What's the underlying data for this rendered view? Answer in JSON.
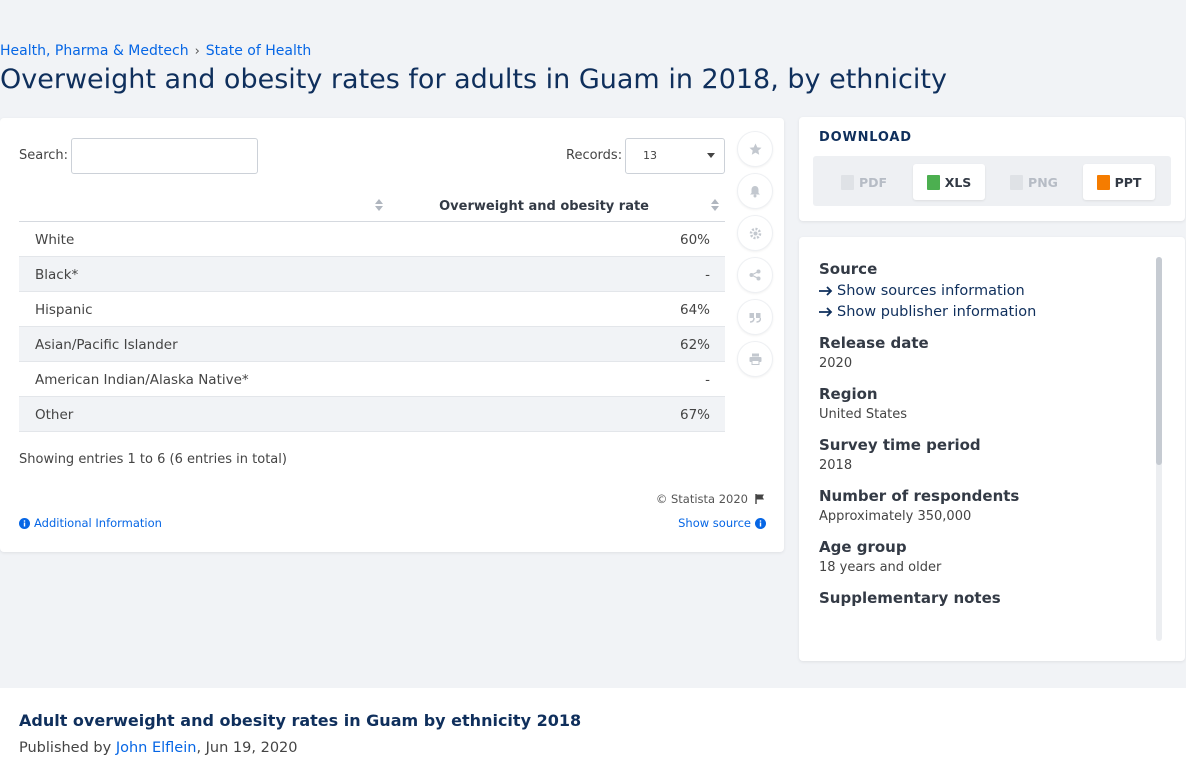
{
  "breadcrumb": {
    "items": [
      "Health, Pharma & Medtech",
      "State of Health"
    ],
    "separator": "›"
  },
  "page": {
    "title": "Overweight and obesity rates for adults in Guam in 2018, by ethnicity"
  },
  "table_controls": {
    "search_label": "Search:",
    "search_value": "",
    "records_label": "Records:",
    "records_value": "13"
  },
  "table": {
    "columns": [
      "",
      "Overweight and obesity rate"
    ],
    "rows": [
      {
        "label": "White",
        "value": "60%"
      },
      {
        "label": "Black*",
        "value": "-"
      },
      {
        "label": "Hispanic",
        "value": "64%"
      },
      {
        "label": "Asian/Pacific Islander",
        "value": "62%"
      },
      {
        "label": "American Indian/Alaska Native*",
        "value": "-"
      },
      {
        "label": "Other",
        "value": "67%"
      }
    ],
    "showing": "Showing entries 1 to 6 (6 entries in total)"
  },
  "footer": {
    "copyright": "© Statista 2020",
    "additional_info": "Additional Information",
    "show_source": "Show source"
  },
  "tools": [
    "star-icon",
    "bell-icon",
    "gear-icon",
    "share-icon",
    "quote-icon",
    "print-icon"
  ],
  "download": {
    "title": "DOWNLOAD",
    "buttons": [
      {
        "label": "PDF",
        "enabled": false
      },
      {
        "label": "XLS",
        "enabled": true
      },
      {
        "label": "PNG",
        "enabled": false
      },
      {
        "label": "PPT",
        "enabled": true
      }
    ]
  },
  "info": {
    "source_heading": "Source",
    "show_sources": "Show sources information",
    "show_publisher": "Show publisher information",
    "release_date_label": "Release date",
    "release_date": "2020",
    "region_label": "Region",
    "region": "United States",
    "survey_period_label": "Survey time period",
    "survey_period": "2018",
    "respondents_label": "Number of respondents",
    "respondents": "Approximately 350,000",
    "age_group_label": "Age group",
    "age_group": "18 years and older",
    "supplementary_label": "Supplementary notes"
  },
  "bottom": {
    "title": "Adult overweight and obesity rates in Guam by ethnicity 2018",
    "published_prefix": "Published by",
    "author": "John Elflein",
    "date": ", Jun 19, 2020"
  },
  "colors": {
    "link": "#0666e5",
    "title": "#0f2f5c",
    "xls": "#4caf50",
    "ppt": "#f57c00"
  }
}
